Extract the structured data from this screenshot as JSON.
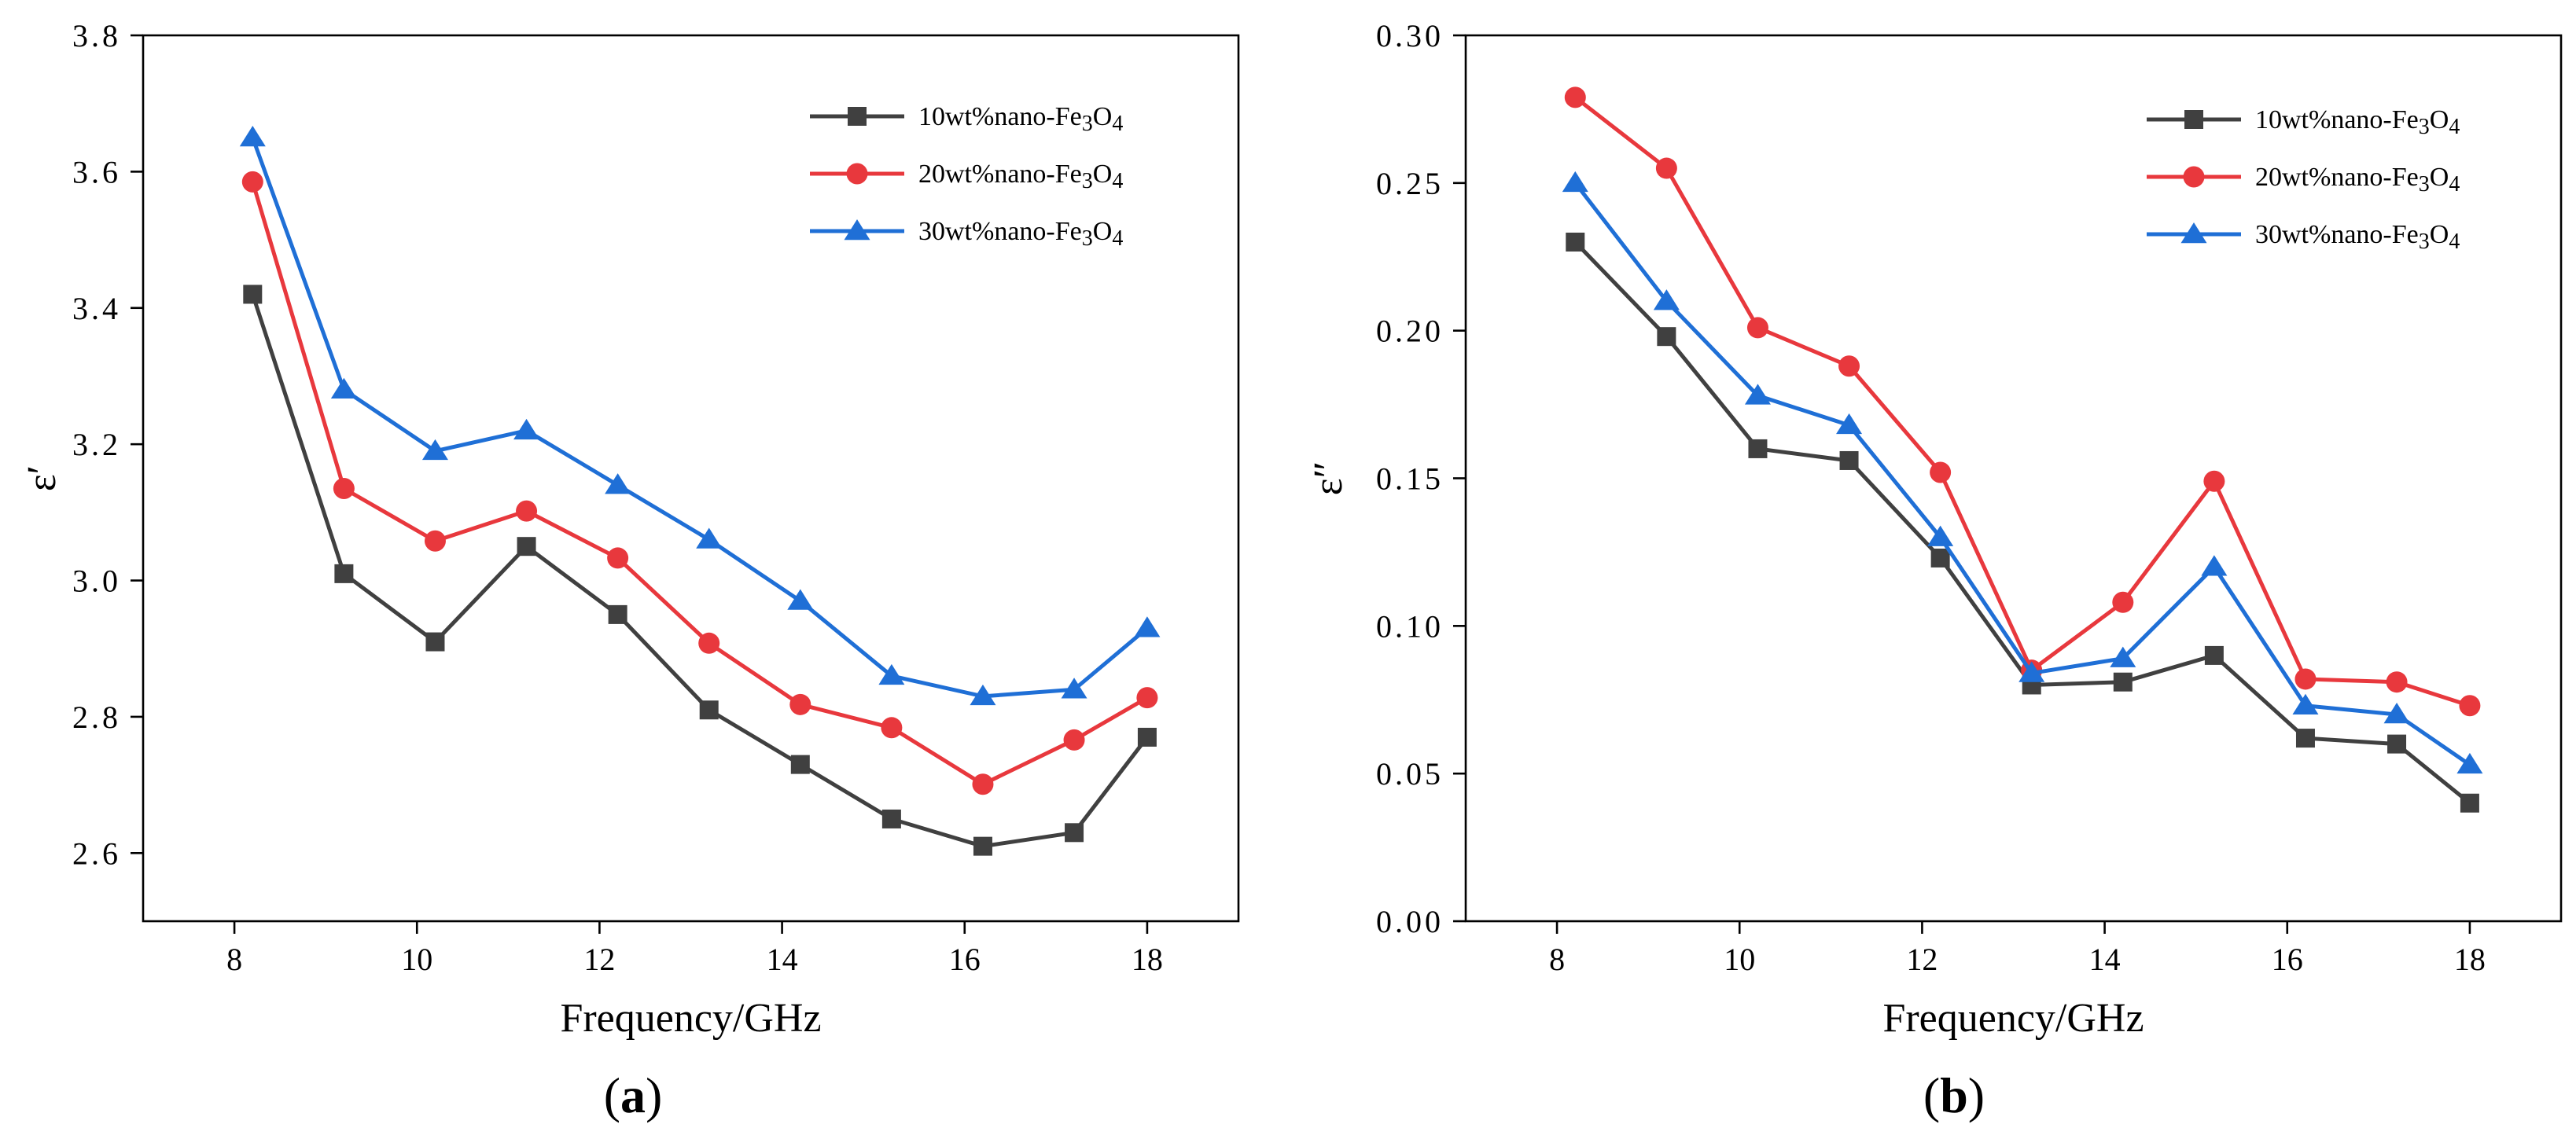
{
  "chart_data": [
    {
      "type": "line",
      "panel_label": "(a)",
      "xlabel": "Frequency/GHz",
      "ylabel": "ε′",
      "xlim": [
        7,
        19
      ],
      "ylim": [
        2.5,
        3.8
      ],
      "xticks": [
        8,
        10,
        12,
        14,
        16,
        18
      ],
      "yticks": [
        2.6,
        2.8,
        3.0,
        3.2,
        3.4,
        3.6,
        3.8
      ],
      "ytick_labels": [
        "2.6",
        "2.8",
        "3.0",
        "3.2",
        "3.4",
        "3.6",
        "3.8"
      ],
      "grid": false,
      "legend": "top-right",
      "x": [
        8.2,
        9.2,
        10.2,
        11.2,
        12.2,
        13.2,
        14.2,
        15.2,
        16.2,
        17.2,
        18.0
      ],
      "series": [
        {
          "name": "10wt%nano-Fe3O4",
          "color": "#404040",
          "marker": "square",
          "values": [
            3.42,
            3.01,
            2.91,
            3.05,
            2.95,
            2.81,
            2.73,
            2.65,
            2.61,
            2.63,
            2.77
          ]
        },
        {
          "name": "20wt%nano-Fe3O4",
          "color": "#e8383d",
          "marker": "circle",
          "values": [
            3.585,
            3.135,
            3.058,
            3.102,
            3.033,
            2.908,
            2.818,
            2.784,
            2.701,
            2.766,
            2.828
          ]
        },
        {
          "name": "30wt%nano-Fe3O4",
          "color": "#1f6fd6",
          "marker": "triangle",
          "values": [
            3.65,
            3.28,
            3.19,
            3.22,
            3.14,
            3.06,
            2.97,
            2.86,
            2.83,
            2.84,
            2.93
          ]
        }
      ]
    },
    {
      "type": "line",
      "panel_label": "(b)",
      "xlabel": "Frequency/GHz",
      "ylabel": "ε″",
      "xlim": [
        7,
        19
      ],
      "ylim": [
        0,
        0.3
      ],
      "xticks": [
        8,
        10,
        12,
        14,
        16,
        18
      ],
      "yticks": [
        0,
        0.05,
        0.1,
        0.15,
        0.2,
        0.25,
        0.3
      ],
      "ytick_labels": [
        "0.00",
        "0.05",
        "0.10",
        "0.15",
        "0.20",
        "0.25",
        "0.30"
      ],
      "grid": false,
      "legend": "top-right",
      "x": [
        8.2,
        9.2,
        10.2,
        11.2,
        12.2,
        13.2,
        14.2,
        15.2,
        16.2,
        17.2,
        18.0
      ],
      "series": [
        {
          "name": "10wt%nano-Fe3O4",
          "color": "#404040",
          "marker": "square",
          "values": [
            0.23,
            0.198,
            0.16,
            0.156,
            0.123,
            0.08,
            0.081,
            0.09,
            0.062,
            0.06,
            0.04
          ]
        },
        {
          "name": "20wt%nano-Fe3O4",
          "color": "#e8383d",
          "marker": "circle",
          "values": [
            0.279,
            0.255,
            0.201,
            0.188,
            0.152,
            0.085,
            0.108,
            0.149,
            0.082,
            0.081,
            0.073
          ]
        },
        {
          "name": "30wt%nano-Fe3O4",
          "color": "#1f6fd6",
          "marker": "triangle",
          "values": [
            0.25,
            0.21,
            0.178,
            0.168,
            0.13,
            0.084,
            0.089,
            0.12,
            0.073,
            0.07,
            0.053
          ]
        }
      ]
    }
  ]
}
